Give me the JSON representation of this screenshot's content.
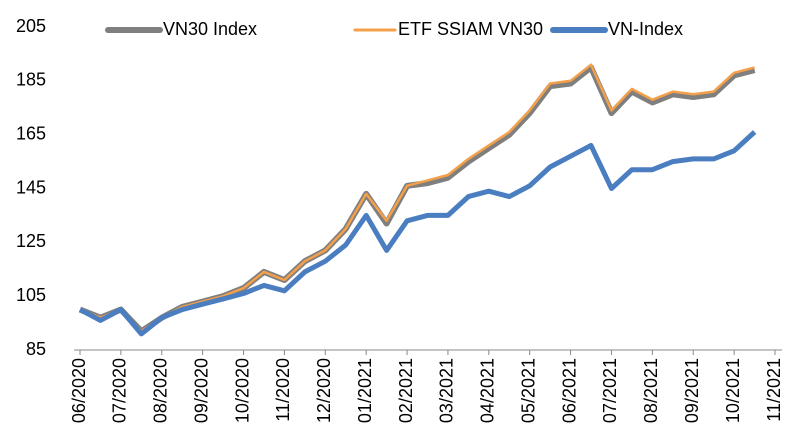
{
  "chart_data": {
    "type": "line",
    "categories": [
      "06/2020",
      null,
      "07/2020",
      null,
      "08/2020",
      null,
      "09/2020",
      null,
      "10/2020",
      null,
      "11/2020",
      null,
      "12/2020",
      null,
      "01/2021",
      null,
      "02/2021",
      null,
      "03/2021",
      null,
      "04/2021",
      null,
      "05/2021",
      null,
      "06/2021",
      null,
      "07/2021",
      null,
      "08/2021",
      null,
      "09/2021",
      null,
      "10/2021",
      null,
      "11/2021"
    ],
    "series": [
      {
        "name": "VN30 Index",
        "color": "#7f7f7f",
        "values": [
          100,
          97,
          100,
          92,
          97,
          101,
          103,
          105,
          108,
          114,
          111,
          118,
          122,
          130,
          143,
          132,
          146,
          147,
          149,
          155,
          160,
          165,
          173,
          183,
          184,
          190,
          173,
          181,
          177,
          180,
          179,
          180,
          187,
          189,
          null
        ]
      },
      {
        "name": "ETF SSIAM VN30",
        "color": "#f4a04a",
        "values": [
          100,
          97,
          100,
          92,
          97,
          101,
          103,
          105,
          108,
          114,
          111,
          118,
          122,
          130,
          143,
          133,
          146,
          148,
          150,
          156,
          161,
          166,
          174,
          184,
          185,
          191,
          174,
          182,
          178,
          181,
          180,
          181,
          188,
          190,
          null
        ]
      },
      {
        "name": "VN-Index",
        "color": "#4a7ec0",
        "values": [
          100,
          96,
          100,
          91,
          97,
          100,
          102,
          104,
          106,
          109,
          107,
          114,
          118,
          124,
          135,
          122,
          133,
          135,
          135,
          142,
          144,
          142,
          146,
          153,
          157,
          161,
          145,
          152,
          152,
          155,
          156,
          156,
          159,
          166,
          null
        ]
      }
    ],
    "ylim": [
      85,
      205
    ],
    "yticks": [
      85,
      105,
      125,
      145,
      165,
      185,
      205
    ],
    "legend": "top"
  }
}
